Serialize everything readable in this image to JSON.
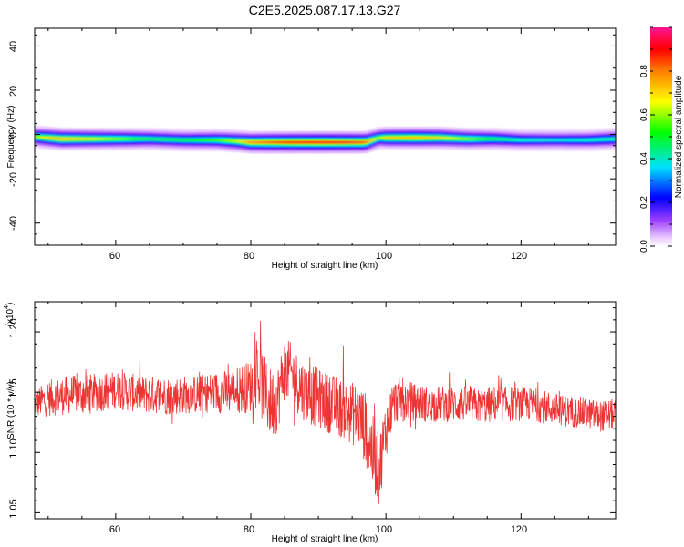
{
  "title": "C2E5.2025.087.17.13.G27",
  "chart_data": [
    {
      "type": "heatmap",
      "title": "C2E5.2025.087.17.13.G27",
      "xlabel": "Height of straight line (km)",
      "ylabel": "Frequency (Hz)",
      "xlim": [
        48,
        134
      ],
      "ylim": [
        -50,
        48
      ],
      "x_ticks": [
        60,
        80,
        100,
        120
      ],
      "y_ticks": [
        40,
        20,
        0,
        -20,
        -40
      ],
      "x_tick_labels": [
        "60",
        "80",
        "100",
        "120"
      ],
      "y_tick_labels": [
        "40",
        "20",
        "0",
        "-20",
        "-40"
      ],
      "colorbar": {
        "label": "Normalized spectral amplitude",
        "range": [
          0.0,
          1.0
        ],
        "ticks": [
          0.0,
          0.2,
          0.4,
          0.6,
          0.8
        ],
        "tick_labels": [
          "0.0",
          "0.2",
          "0.4",
          "0.6",
          "0.8"
        ]
      },
      "ridge": {
        "x": [
          48,
          50,
          52,
          55,
          60,
          65,
          70,
          75,
          78,
          80,
          83,
          86,
          90,
          94,
          97,
          98,
          99,
          100,
          104,
          108,
          112,
          116,
          120,
          125,
          130,
          134
        ],
        "frequency": [
          -1,
          -1.5,
          -2,
          -2,
          -2,
          -2,
          -2.5,
          -2.5,
          -3,
          -3.5,
          -3.5,
          -3.5,
          -3.5,
          -3.5,
          -3.5,
          -2.5,
          -1.5,
          -1.5,
          -1.5,
          -1.5,
          -2,
          -2,
          -2.5,
          -2.5,
          -2.5,
          -2
        ],
        "amplitude": [
          0.6,
          0.7,
          0.75,
          0.7,
          0.6,
          0.5,
          0.5,
          0.55,
          0.65,
          0.8,
          0.85,
          0.9,
          0.92,
          0.9,
          0.85,
          0.7,
          0.6,
          0.72,
          0.75,
          0.7,
          0.6,
          0.5,
          0.42,
          0.4,
          0.42,
          0.45
        ]
      }
    },
    {
      "type": "line",
      "xlabel": "Height of straight line (km)",
      "ylabel": "SNR (10 * v/v)",
      "y_multiplier_label": "(x10",
      "y_multiplier_exponent": "4",
      "y_multiplier_close": ")",
      "xlim": [
        48,
        134
      ],
      "ylim": [
        1.045,
        1.225
      ],
      "x_ticks": [
        60,
        80,
        100,
        120
      ],
      "y_ticks": [
        1.05,
        1.1,
        1.15,
        1.2
      ],
      "x_tick_labels": [
        "60",
        "80",
        "100",
        "120"
      ],
      "y_tick_labels": [
        "1.05",
        "1.10",
        "1.15",
        "1.20"
      ],
      "color": "#ee3333",
      "series": [
        {
          "x": [
            48,
            50,
            52,
            54,
            56,
            58,
            60,
            62,
            64,
            66,
            68,
            70,
            72,
            74,
            76,
            78,
            80,
            81,
            82,
            83,
            84,
            85,
            86,
            88,
            90,
            92,
            94,
            96,
            97,
            98,
            99,
            100,
            101,
            102,
            104,
            106,
            108,
            110,
            112,
            114,
            116,
            118,
            120,
            122,
            124,
            126,
            128,
            130,
            132,
            134
          ],
          "center": [
            1.14,
            1.145,
            1.147,
            1.148,
            1.149,
            1.15,
            1.152,
            1.15,
            1.148,
            1.148,
            1.147,
            1.148,
            1.148,
            1.15,
            1.15,
            1.152,
            1.155,
            1.165,
            1.15,
            1.14,
            1.145,
            1.17,
            1.165,
            1.15,
            1.145,
            1.14,
            1.135,
            1.13,
            1.12,
            1.1,
            1.085,
            1.12,
            1.14,
            1.145,
            1.142,
            1.14,
            1.14,
            1.14,
            1.14,
            1.138,
            1.14,
            1.14,
            1.14,
            1.14,
            1.137,
            1.135,
            1.133,
            1.132,
            1.13,
            1.132
          ],
          "spread": [
            0.012,
            0.015,
            0.016,
            0.016,
            0.016,
            0.016,
            0.016,
            0.016,
            0.016,
            0.016,
            0.016,
            0.016,
            0.016,
            0.017,
            0.018,
            0.02,
            0.022,
            0.028,
            0.03,
            0.03,
            0.028,
            0.026,
            0.026,
            0.025,
            0.025,
            0.025,
            0.025,
            0.028,
            0.03,
            0.032,
            0.03,
            0.025,
            0.02,
            0.018,
            0.016,
            0.015,
            0.015,
            0.015,
            0.015,
            0.015,
            0.015,
            0.015,
            0.014,
            0.014,
            0.014,
            0.013,
            0.013,
            0.013,
            0.013,
            0.013
          ]
        }
      ]
    }
  ]
}
